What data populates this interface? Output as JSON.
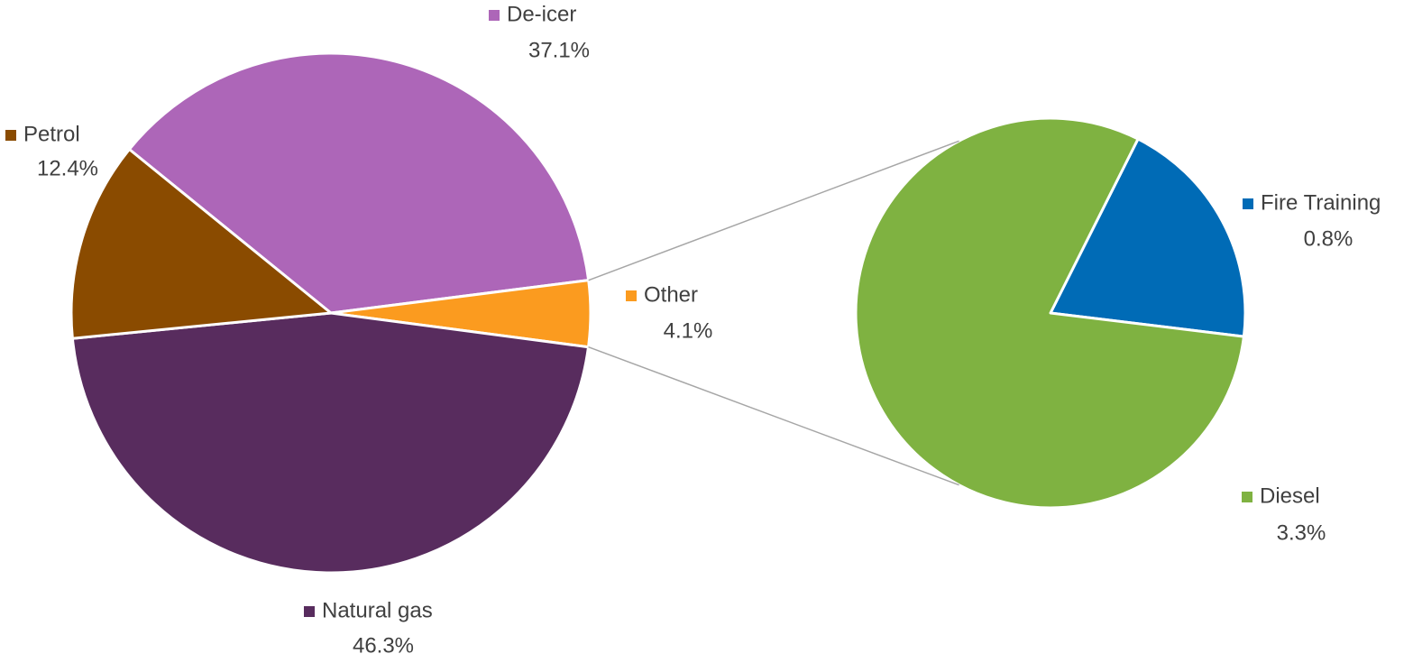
{
  "chart_data": [
    {
      "type": "pie",
      "categories": [
        "De-icer",
        "Other",
        "Natural gas",
        "Petrol"
      ],
      "values": [
        37.1,
        4.1,
        46.3,
        12.4
      ],
      "value_labels": [
        "37.1%",
        "4.1%",
        "46.3%",
        "12.4%"
      ],
      "colors": [
        "#ad66b8",
        "#fb9b1f",
        "#582c5e",
        "#8a4b00"
      ]
    },
    {
      "type": "pie",
      "categories": [
        "Fire Training",
        "Diesel"
      ],
      "values": [
        0.8,
        3.3
      ],
      "value_labels": [
        "0.8%",
        "3.3%"
      ],
      "colors": [
        "#006bb6",
        "#7fb241"
      ]
    }
  ]
}
